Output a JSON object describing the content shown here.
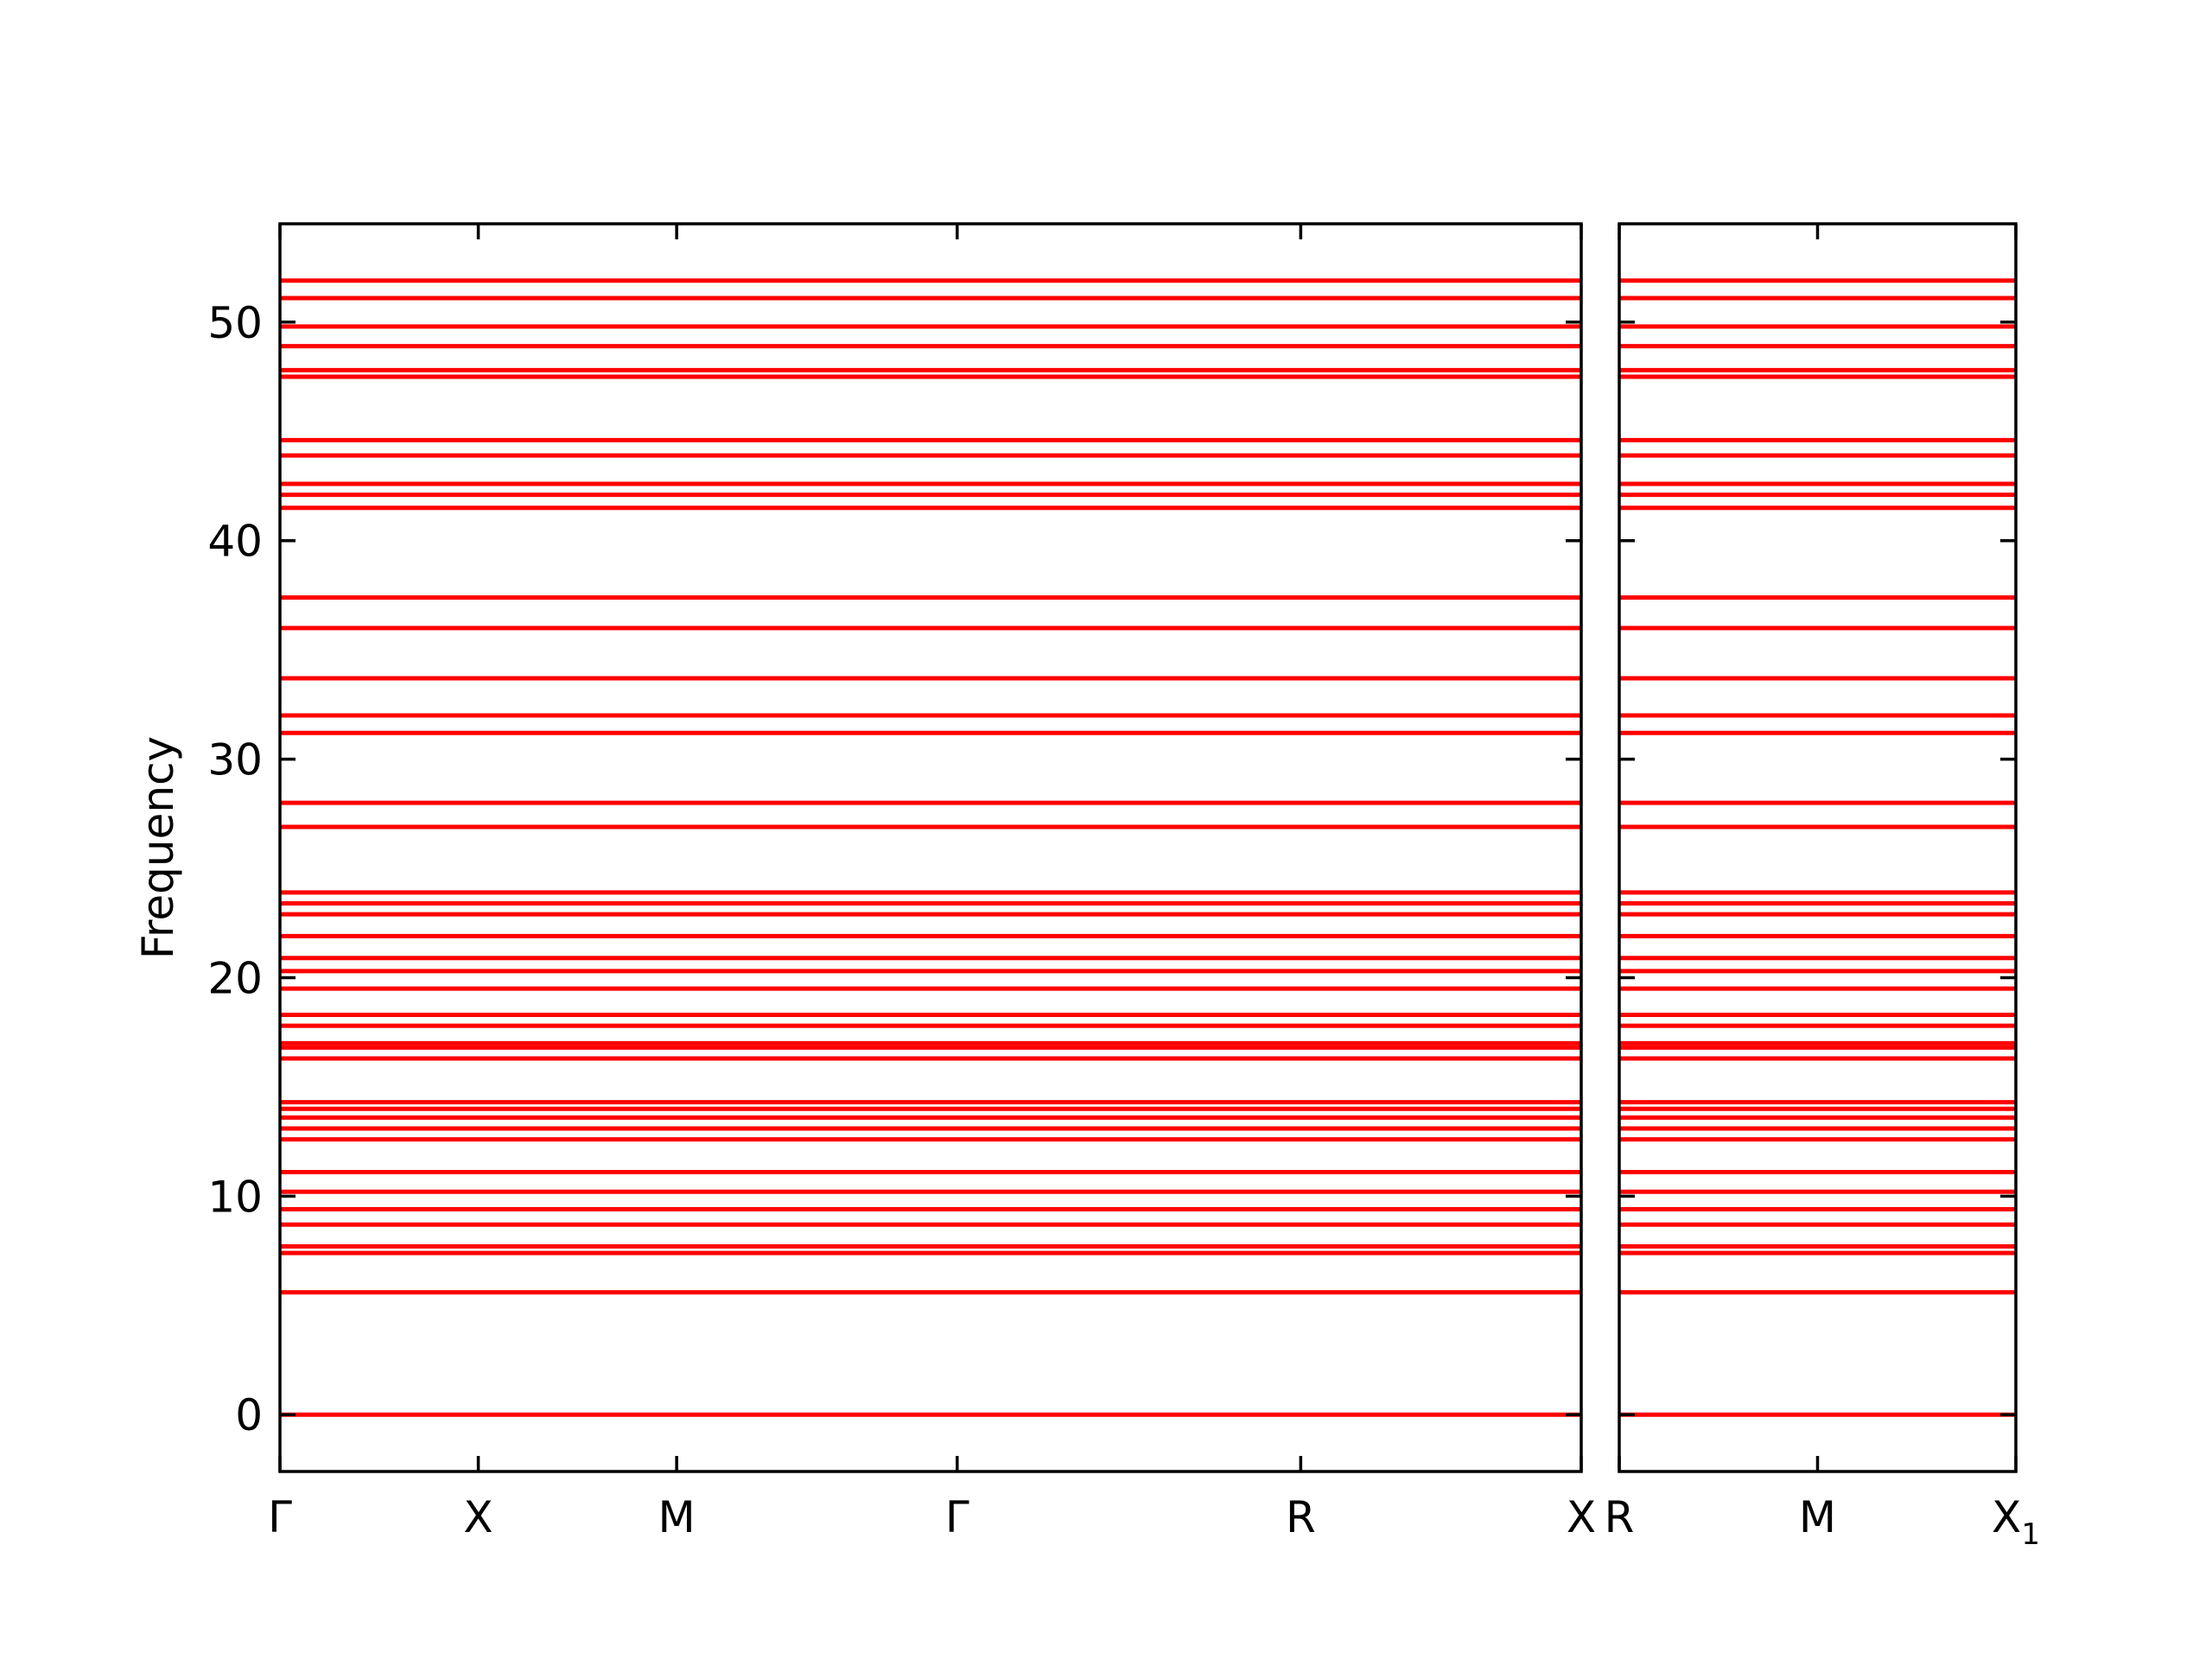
{
  "chart_data": {
    "type": "line",
    "title": "",
    "ylabel": "Frequency",
    "ylim": [
      -2.6,
      54.5
    ],
    "yticks": [
      0,
      10,
      20,
      30,
      40,
      50
    ],
    "line_color": "#ff0000",
    "grid": false,
    "panels": [
      {
        "name": "panel-left",
        "xticks": [
          "Γ",
          "X",
          "M",
          "Γ",
          "R",
          "X"
        ],
        "xtick_positions": [
          0,
          0.5,
          1.0,
          1.7071,
          2.5731,
          3.2802
        ]
      },
      {
        "name": "panel-right",
        "xticks": [
          "R",
          "M",
          "X1"
        ],
        "xtick_positions": [
          0,
          0.7071,
          1.4142
        ]
      }
    ],
    "bands": [
      0.0,
      5.6,
      7.4,
      7.7,
      8.7,
      9.4,
      10.2,
      11.1,
      12.6,
      13.1,
      13.6,
      14.0,
      14.3,
      16.3,
      16.8,
      17.0,
      17.8,
      18.3,
      19.5,
      20.3,
      20.9,
      21.9,
      22.9,
      23.4,
      23.9,
      26.9,
      28.0,
      31.2,
      32.0,
      33.7,
      36.0,
      37.4,
      41.5,
      42.1,
      42.6,
      43.9,
      44.6,
      47.5,
      47.8,
      48.9,
      49.8,
      51.1,
      51.9
    ]
  }
}
